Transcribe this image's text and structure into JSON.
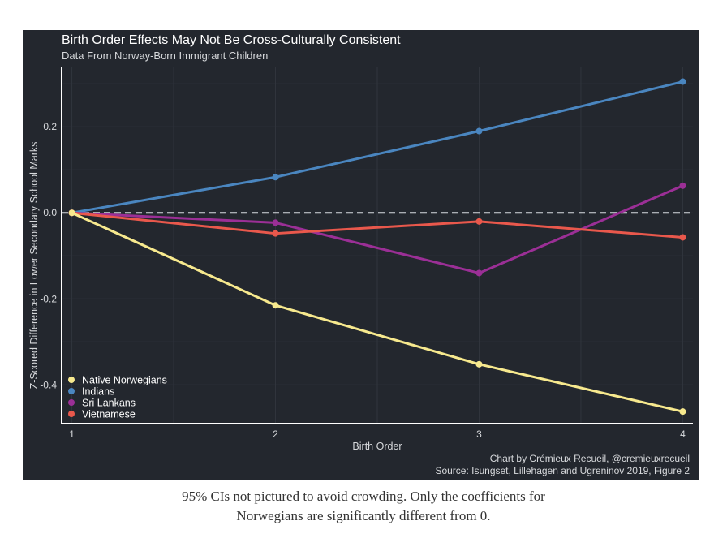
{
  "chart_data": {
    "type": "line",
    "title": "Birth Order Effects May Not Be Cross-Culturally Consistent",
    "subtitle": "Data From Norway-Born Immigrant Children",
    "xlabel": "Birth Order",
    "ylabel": "Z-Scored Difference in Lower Secondary School Marks",
    "x": [
      1,
      2,
      3,
      4
    ],
    "x_ticks": [
      "1",
      "2",
      "3",
      "4"
    ],
    "y_ticks": [
      -0.4,
      -0.2,
      0.0,
      0.2
    ],
    "y_tick_labels": [
      "-0.4",
      "-0.2",
      "0.0",
      "0.2"
    ],
    "xlim": [
      0.95,
      4.05
    ],
    "ylim": [
      -0.49,
      0.34
    ],
    "reference_line": 0,
    "legend_position": "bottom-left",
    "grid": true,
    "series": [
      {
        "name": "Native Norwegians",
        "color": "#f7e98e",
        "values": [
          0,
          -0.215,
          -0.352,
          -0.462
        ]
      },
      {
        "name": "Indians",
        "color": "#4a86c0",
        "values": [
          0,
          0.083,
          0.19,
          0.305
        ]
      },
      {
        "name": "Sri Lankans",
        "color": "#9b2f96",
        "values": [
          0,
          -0.023,
          -0.14,
          0.063
        ]
      },
      {
        "name": "Vietnamese",
        "color": "#e9584c",
        "values": [
          0,
          -0.048,
          -0.02,
          -0.057
        ]
      }
    ],
    "credit_line1": "Chart by Crémieux Recueil, @cremieuxrecueil",
    "credit_line2": "Source: Isungset, Lillehagen and Ugreninov 2019, Figure 2"
  },
  "caption": {
    "line1": "95% CIs not pictured to avoid crowding. Only the coefficients for",
    "line2": "Norwegians are significantly different from 0."
  }
}
